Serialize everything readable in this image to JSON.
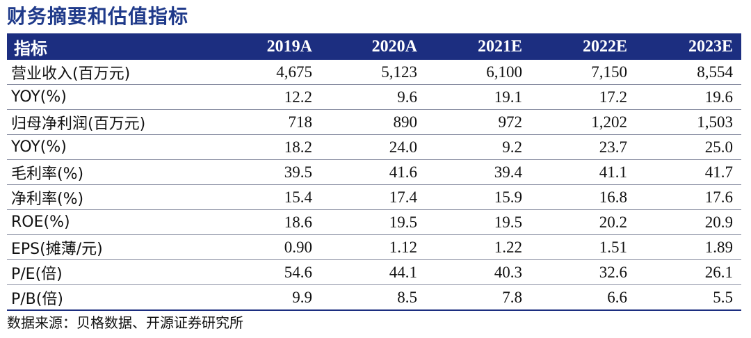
{
  "title": "财务摘要和估值指标",
  "table": {
    "headers": [
      "指标",
      "2019A",
      "2020A",
      "2021E",
      "2022E",
      "2023E"
    ],
    "rows": [
      [
        "营业收入(百万元)",
        "4,675",
        "5,123",
        "6,100",
        "7,150",
        "8,554"
      ],
      [
        "YOY(%)",
        "12.2",
        "9.6",
        "19.1",
        "17.2",
        "19.6"
      ],
      [
        "归母净利润(百万元)",
        "718",
        "890",
        "972",
        "1,202",
        "1,503"
      ],
      [
        "YOY(%)",
        "18.2",
        "24.0",
        "9.2",
        "23.7",
        "25.0"
      ],
      [
        "毛利率(%)",
        "39.5",
        "41.6",
        "39.4",
        "41.1",
        "41.7"
      ],
      [
        "净利率(%)",
        "15.4",
        "17.4",
        "15.9",
        "16.8",
        "17.6"
      ],
      [
        "ROE(%)",
        "18.6",
        "19.5",
        "19.5",
        "20.2",
        "20.9"
      ],
      [
        "EPS(摊薄/元)",
        "0.90",
        "1.12",
        "1.22",
        "1.51",
        "1.89"
      ],
      [
        "P/E(倍)",
        "54.6",
        "44.1",
        "40.3",
        "32.6",
        "26.1"
      ],
      [
        "P/B(倍)",
        "9.9",
        "8.5",
        "7.8",
        "6.6",
        "5.5"
      ]
    ]
  },
  "source": "数据来源：贝格数据、开源证券研究所",
  "colors": {
    "header_bg": "#1c2e80",
    "title": "#1f3a8a"
  }
}
